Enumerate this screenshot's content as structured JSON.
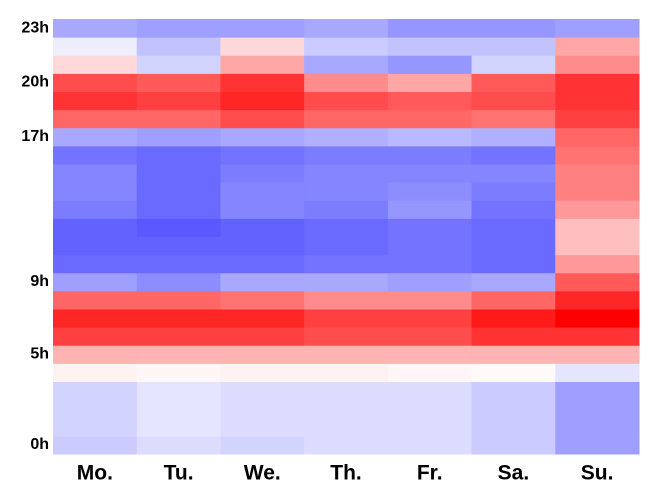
{
  "chart_data": {
    "type": "heatmap",
    "categories": [
      "Mo.",
      "Tu.",
      "We.",
      "Th.",
      "Fr.",
      "Sa.",
      "Su."
    ],
    "ylim": [
      -0.5,
      23.5
    ],
    "yticks": [
      {
        "value": 0,
        "label": "0h"
      },
      {
        "value": 5,
        "label": "5h"
      },
      {
        "value": 9,
        "label": "9h"
      },
      {
        "value": 17,
        "label": "17h"
      },
      {
        "value": 20,
        "label": "20h"
      },
      {
        "value": 23,
        "label": "23h"
      }
    ],
    "zlim": [
      -1,
      1
    ],
    "colors": {
      "low": "#5050ff",
      "mid": "#ffffff",
      "high": "#ff0000"
    },
    "values": [
      [
        -0.3,
        -0.25,
        -0.25,
        -0.25,
        0.05,
        0.3,
        0.75,
        0.85,
        0.6,
        -0.55,
        -0.85,
        -0.9,
        -0.9,
        -0.75,
        -0.7,
        -0.7,
        -0.8,
        -0.5,
        0.6,
        0.8,
        0.7,
        0.15,
        -0.1,
        -0.5
      ],
      [
        -0.2,
        -0.15,
        -0.15,
        -0.15,
        0.03,
        0.3,
        0.75,
        0.85,
        0.6,
        -0.65,
        -0.85,
        -0.9,
        -0.95,
        -0.85,
        -0.85,
        -0.85,
        -0.85,
        -0.55,
        0.6,
        0.75,
        0.65,
        -0.25,
        -0.35,
        -0.55
      ],
      [
        -0.25,
        -0.2,
        -0.2,
        -0.2,
        0.05,
        0.3,
        0.75,
        0.85,
        0.55,
        -0.5,
        -0.85,
        -0.9,
        -0.9,
        -0.7,
        -0.7,
        -0.75,
        -0.8,
        -0.5,
        0.7,
        0.85,
        0.8,
        0.35,
        0.15,
        -0.55
      ],
      [
        -0.2,
        -0.2,
        -0.2,
        -0.2,
        0.05,
        0.3,
        0.7,
        0.75,
        0.45,
        -0.5,
        -0.8,
        -0.85,
        -0.85,
        -0.75,
        -0.7,
        -0.7,
        -0.75,
        -0.45,
        0.6,
        0.7,
        0.45,
        -0.5,
        -0.3,
        -0.5
      ],
      [
        -0.2,
        -0.2,
        -0.2,
        -0.2,
        0.03,
        0.3,
        0.7,
        0.75,
        0.45,
        -0.55,
        -0.8,
        -0.8,
        -0.8,
        -0.6,
        -0.65,
        -0.7,
        -0.75,
        -0.4,
        0.6,
        0.65,
        0.35,
        -0.6,
        -0.35,
        -0.6
      ],
      [
        -0.3,
        -0.3,
        -0.3,
        -0.3,
        0.02,
        0.3,
        0.8,
        0.9,
        0.6,
        -0.5,
        -0.85,
        -0.85,
        -0.85,
        -0.8,
        -0.75,
        -0.7,
        -0.8,
        -0.45,
        0.55,
        0.7,
        0.65,
        -0.25,
        -0.35,
        -0.6
      ],
      [
        -0.55,
        -0.55,
        -0.55,
        -0.55,
        -0.15,
        0.3,
        0.8,
        1.0,
        0.85,
        0.65,
        0.4,
        0.25,
        0.25,
        0.4,
        0.5,
        0.5,
        0.55,
        0.6,
        0.75,
        0.8,
        0.8,
        0.45,
        0.35,
        -0.55
      ]
    ]
  }
}
